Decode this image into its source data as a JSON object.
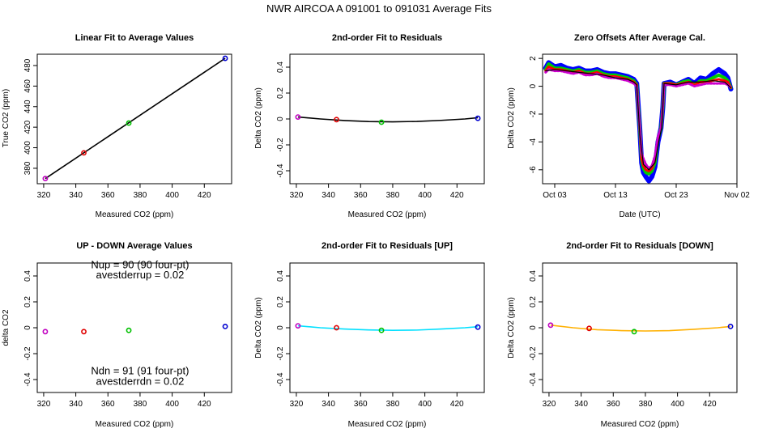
{
  "figure_title": "NWR   AIRCOA A   091001 to 091031   Average Fits",
  "chart_data": [
    {
      "id": "linear",
      "type": "scatter",
      "title": "Linear Fit to Average Values",
      "xlabel": "Measured CO2 (ppm)",
      "ylabel": "True CO2 (ppm)",
      "xlim": [
        316,
        437
      ],
      "ylim": [
        365,
        491
      ],
      "xticks": [
        320,
        340,
        360,
        380,
        400,
        420
      ],
      "yticks": [
        380,
        400,
        420,
        440,
        460,
        480
      ],
      "points": [
        {
          "x": 321,
          "y": 370,
          "color": "#c000c0"
        },
        {
          "x": 345,
          "y": 395,
          "color": "#e00000"
        },
        {
          "x": 373,
          "y": 424,
          "color": "#00c000"
        },
        {
          "x": 433,
          "y": 487,
          "color": "#0000d0"
        }
      ],
      "fit_line": {
        "x": [
          321,
          433
        ],
        "y": [
          370,
          487
        ],
        "color": "#000000"
      }
    },
    {
      "id": "resid",
      "type": "scatter",
      "title": "2nd-order Fit to Residuals",
      "xlabel": "Measured CO2 (ppm)",
      "ylabel": "Delta CO2 (ppm)",
      "xlim": [
        316,
        437
      ],
      "ylim": [
        -0.5,
        0.5
      ],
      "xticks": [
        320,
        340,
        360,
        380,
        400,
        420
      ],
      "yticks": [
        -0.4,
        -0.2,
        0.0,
        0.2,
        0.4
      ],
      "points": [
        {
          "x": 321,
          "y": 0.015,
          "color": "#c000c0"
        },
        {
          "x": 345,
          "y": -0.005,
          "color": "#e00000"
        },
        {
          "x": 373,
          "y": -0.025,
          "color": "#00c000"
        },
        {
          "x": 433,
          "y": 0.005,
          "color": "#0000d0"
        }
      ],
      "fit_curve": {
        "x": [
          321,
          335,
          350,
          365,
          380,
          395,
          410,
          425,
          433
        ],
        "y": [
          0.015,
          0.0,
          -0.012,
          -0.02,
          -0.022,
          -0.019,
          -0.011,
          0.0,
          0.01
        ],
        "color": "#000000"
      }
    },
    {
      "id": "zero",
      "type": "line",
      "title": "Zero Offsets After Average Cal.",
      "xlabel": "Date (UTC)",
      "ylabel": "Delta CO2 (ppm)",
      "xlim": [
        0,
        32
      ],
      "ylim": [
        -7,
        2.3
      ],
      "xticks": [
        {
          "v": 2,
          "label": "Oct 03"
        },
        {
          "v": 12,
          "label": "Oct 13"
        },
        {
          "v": 22,
          "label": "Oct 23"
        },
        {
          "v": 32,
          "label": "Nov 02"
        }
      ],
      "yticks": [
        -6,
        -4,
        -2,
        0,
        2
      ],
      "series": [
        {
          "name": "blue",
          "color": "#0000ff",
          "width": 6,
          "x": [
            0.5,
            1,
            2,
            3,
            4,
            5,
            6,
            7,
            8,
            9,
            10,
            11,
            12,
            13,
            14,
            15,
            15.5,
            16,
            16.3,
            16.6,
            17,
            17.5,
            18,
            18.5,
            19,
            19.5,
            19.8,
            20,
            21,
            22,
            23,
            24,
            25,
            26,
            27,
            28,
            29,
            30,
            30.5,
            31
          ],
          "y": [
            1.3,
            1.7,
            1.4,
            1.5,
            1.3,
            1.2,
            1.3,
            1.1,
            1.1,
            1.2,
            1.0,
            0.9,
            0.9,
            0.8,
            0.7,
            0.5,
            0.2,
            -3.0,
            -5.5,
            -6.2,
            -6.5,
            -6.8,
            -6.5,
            -5.8,
            -4.0,
            -3.0,
            -1.5,
            0.2,
            0.3,
            0.1,
            0.3,
            0.5,
            0.2,
            0.6,
            0.5,
            0.9,
            1.2,
            0.9,
            0.6,
            -0.2
          ]
        },
        {
          "name": "green",
          "color": "#00cc00",
          "width": 4,
          "x": [
            0.5,
            1,
            2,
            3,
            4,
            5,
            6,
            7,
            8,
            9,
            10,
            11,
            12,
            13,
            14,
            15,
            15.5,
            16,
            16.3,
            16.6,
            17,
            17.5,
            18,
            18.5,
            19,
            19.5,
            19.8,
            20,
            21,
            22,
            23,
            24,
            25,
            26,
            27,
            28,
            29,
            30,
            30.5,
            31
          ],
          "y": [
            1.2,
            1.6,
            1.3,
            1.3,
            1.2,
            1.1,
            1.2,
            1.0,
            1.0,
            1.1,
            0.9,
            0.8,
            0.8,
            0.7,
            0.6,
            0.4,
            0.1,
            -3.0,
            -5.3,
            -5.9,
            -6.2,
            -6.3,
            -6.1,
            -5.5,
            -3.8,
            -3.0,
            -1.5,
            0.2,
            0.2,
            0.1,
            0.3,
            0.4,
            0.1,
            0.4,
            0.4,
            0.6,
            0.8,
            0.6,
            0.4,
            -0.1
          ]
        },
        {
          "name": "red",
          "color": "#ff0000",
          "width": 3,
          "x": [
            0.5,
            1,
            2,
            3,
            4,
            5,
            6,
            7,
            8,
            9,
            10,
            11,
            12,
            13,
            14,
            15,
            15.5,
            16,
            16.3,
            16.6,
            17,
            17.5,
            18,
            18.5,
            19,
            19.5,
            19.8,
            20,
            21,
            22,
            23,
            24,
            25,
            26,
            27,
            28,
            29,
            30,
            30.5,
            31
          ],
          "y": [
            1.1,
            1.4,
            1.2,
            1.2,
            1.1,
            1.0,
            1.1,
            0.9,
            0.9,
            1.0,
            0.8,
            0.7,
            0.7,
            0.6,
            0.5,
            0.3,
            0.1,
            -3.0,
            -5.2,
            -5.7,
            -6.0,
            -6.1,
            -5.9,
            -5.3,
            -3.7,
            -3.0,
            -1.5,
            0.2,
            0.2,
            0.1,
            0.2,
            0.3,
            0.1,
            0.3,
            0.3,
            0.4,
            0.5,
            0.4,
            0.3,
            -0.1
          ]
        },
        {
          "name": "magenta",
          "color": "#cc00cc",
          "width": 3,
          "dotted": true,
          "x": [
            0.5,
            1,
            2,
            3,
            4,
            5,
            6,
            7,
            8,
            9,
            10,
            11,
            12,
            13,
            14,
            15,
            15.5,
            16,
            16.3,
            16.6,
            17,
            17.5,
            18,
            18.5,
            19,
            19.5,
            19.8,
            20,
            21,
            22,
            23,
            24,
            25,
            26,
            27,
            28,
            29,
            30,
            30.5,
            31
          ],
          "y": [
            1.0,
            1.2,
            1.1,
            1.1,
            1.0,
            0.9,
            1.0,
            0.8,
            0.8,
            0.9,
            0.7,
            0.6,
            0.6,
            0.5,
            0.4,
            0.2,
            0.0,
            -3.0,
            -4.8,
            -5.2,
            -5.6,
            -5.9,
            -5.7,
            -5.0,
            -3.6,
            -3.0,
            -1.5,
            0.1,
            0.1,
            0.0,
            0.1,
            0.2,
            0.0,
            0.1,
            0.2,
            0.2,
            0.2,
            0.2,
            0.1,
            -0.1
          ]
        },
        {
          "name": "black",
          "color": "#000000",
          "width": 1.2,
          "x": [
            0.5,
            2,
            4,
            6,
            8,
            10,
            12,
            14,
            15,
            15.5,
            15.8,
            16,
            16.6,
            17.5,
            18.5,
            19.2,
            19.6,
            19.8,
            20,
            22,
            24,
            26,
            28,
            30,
            31
          ],
          "y": [
            1.1,
            1.2,
            1.1,
            1.0,
            0.9,
            0.8,
            0.6,
            0.5,
            0.3,
            0.1,
            -2.0,
            -3.5,
            -5.6,
            -6.0,
            -5.5,
            -3.8,
            -3.0,
            -1.5,
            0.2,
            0.1,
            0.3,
            0.3,
            0.4,
            0.3,
            -0.1
          ]
        }
      ]
    },
    {
      "id": "updown",
      "type": "scatter",
      "title": "UP - DOWN Average Values",
      "xlabel": "Measured CO2 (ppm)",
      "ylabel": "delta CO2",
      "xlim": [
        316,
        437
      ],
      "ylim": [
        -0.5,
        0.5
      ],
      "xticks": [
        320,
        340,
        360,
        380,
        400,
        420
      ],
      "yticks": [
        -0.4,
        -0.2,
        0.0,
        0.2,
        0.4
      ],
      "points": [
        {
          "x": 321,
          "y": -0.03,
          "color": "#c000c0"
        },
        {
          "x": 345,
          "y": -0.03,
          "color": "#e00000"
        },
        {
          "x": 373,
          "y": -0.02,
          "color": "#00c000"
        },
        {
          "x": 433,
          "y": 0.01,
          "color": "#0000d0"
        }
      ],
      "annotations": [
        {
          "text": "Nup = 90 (90 four-pt)",
          "x": 380,
          "y": 0.46
        },
        {
          "text": "avestderrup =  0.02",
          "x": 380,
          "y": 0.38
        },
        {
          "text": "Ndn = 91 (91 four-pt)",
          "x": 380,
          "y": -0.36
        },
        {
          "text": "avestderrdn =  0.02",
          "x": 380,
          "y": -0.44
        }
      ]
    },
    {
      "id": "resid_up",
      "type": "scatter",
      "title": "2nd-order Fit to Residuals [UP]",
      "xlabel": "Measured CO2 (ppm)",
      "ylabel": "Delta CO2 (ppm)",
      "xlim": [
        316,
        437
      ],
      "ylim": [
        -0.5,
        0.5
      ],
      "xticks": [
        320,
        340,
        360,
        380,
        400,
        420
      ],
      "yticks": [
        -0.4,
        -0.2,
        0.0,
        0.2,
        0.4
      ],
      "points": [
        {
          "x": 321,
          "y": 0.015,
          "color": "#c000c0"
        },
        {
          "x": 345,
          "y": 0.0,
          "color": "#e00000"
        },
        {
          "x": 373,
          "y": -0.02,
          "color": "#00c000"
        },
        {
          "x": 433,
          "y": 0.005,
          "color": "#0000d0"
        }
      ],
      "fit_curve": {
        "x": [
          321,
          335,
          350,
          365,
          380,
          395,
          410,
          425,
          433
        ],
        "y": [
          0.015,
          0.0,
          -0.01,
          -0.017,
          -0.02,
          -0.018,
          -0.01,
          0.0,
          0.008
        ],
        "color": "#00e0ff"
      }
    },
    {
      "id": "resid_down",
      "type": "scatter",
      "title": "2nd-order Fit to Residuals [DOWN]",
      "xlabel": "Measured CO2 (ppm)",
      "ylabel": "Delta CO2 (ppm)",
      "xlim": [
        316,
        437
      ],
      "ylim": [
        -0.5,
        0.5
      ],
      "xticks": [
        320,
        340,
        360,
        380,
        400,
        420
      ],
      "yticks": [
        -0.4,
        -0.2,
        0.0,
        0.2,
        0.4
      ],
      "points": [
        {
          "x": 321,
          "y": 0.02,
          "color": "#c000c0"
        },
        {
          "x": 345,
          "y": -0.005,
          "color": "#e00000"
        },
        {
          "x": 373,
          "y": -0.03,
          "color": "#00c000"
        },
        {
          "x": 433,
          "y": 0.01,
          "color": "#0000d0"
        }
      ],
      "fit_curve": {
        "x": [
          321,
          335,
          350,
          365,
          380,
          395,
          410,
          425,
          433
        ],
        "y": [
          0.02,
          0.0,
          -0.015,
          -0.022,
          -0.025,
          -0.022,
          -0.012,
          0.0,
          0.01
        ],
        "color": "#ffb000"
      }
    }
  ]
}
